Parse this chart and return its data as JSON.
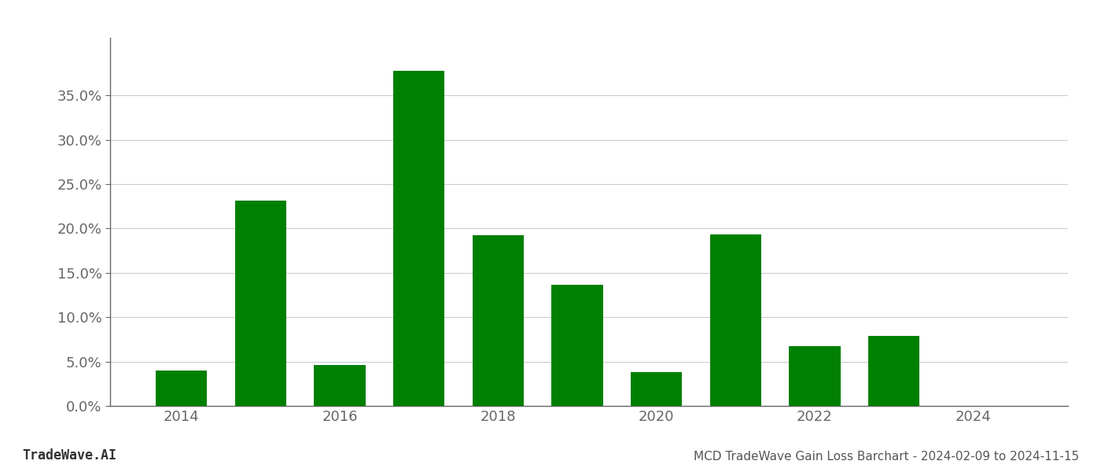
{
  "years": [
    2014,
    2015,
    2016,
    2017,
    2018,
    2019,
    2020,
    2021,
    2022,
    2023
  ],
  "values": [
    0.04,
    0.231,
    0.046,
    0.378,
    0.192,
    0.137,
    0.038,
    0.193,
    0.067,
    0.079
  ],
  "bar_color": "#008000",
  "background_color": "#ffffff",
  "grid_color": "#cccccc",
  "title": "MCD TradeWave Gain Loss Barchart - 2024-02-09 to 2024-11-15",
  "watermark_left": "TradeWave.AI",
  "ylim": [
    0.0,
    0.415
  ],
  "yticks": [
    0.0,
    0.05,
    0.1,
    0.15,
    0.2,
    0.25,
    0.3,
    0.35
  ],
  "xtick_years": [
    2014,
    2016,
    2018,
    2020,
    2022,
    2024
  ],
  "title_fontsize": 11,
  "watermark_fontsize": 12,
  "tick_fontsize": 13,
  "axis_color": "#888888",
  "spine_color": "#666666"
}
